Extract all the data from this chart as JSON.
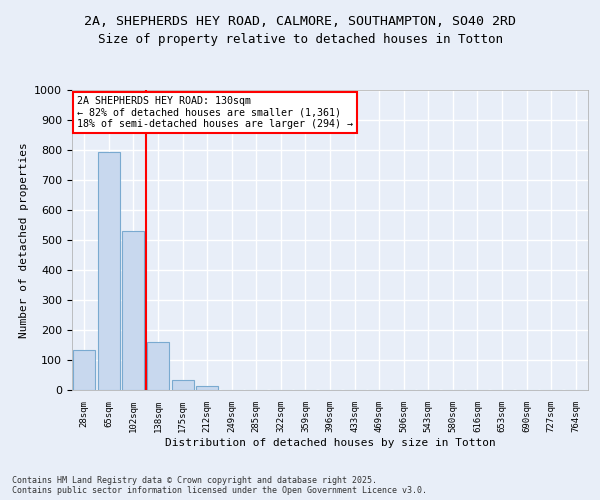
{
  "title": "2A, SHEPHERDS HEY ROAD, CALMORE, SOUTHAMPTON, SO40 2RD",
  "subtitle": "Size of property relative to detached houses in Totton",
  "xlabel": "Distribution of detached houses by size in Totton",
  "ylabel": "Number of detached properties",
  "categories": [
    "28sqm",
    "65sqm",
    "102sqm",
    "138sqm",
    "175sqm",
    "212sqm",
    "249sqm",
    "285sqm",
    "322sqm",
    "359sqm",
    "396sqm",
    "433sqm",
    "469sqm",
    "506sqm",
    "543sqm",
    "580sqm",
    "616sqm",
    "653sqm",
    "690sqm",
    "727sqm",
    "764sqm"
  ],
  "values": [
    135,
    795,
    530,
    160,
    35,
    12,
    0,
    0,
    0,
    0,
    0,
    0,
    0,
    0,
    0,
    0,
    0,
    0,
    0,
    0,
    0
  ],
  "bar_color": "#c8d8ee",
  "bar_edge_color": "#7aaad0",
  "vline_color": "red",
  "vline_pos": 2.5,
  "annotation_box_text": "2A SHEPHERDS HEY ROAD: 130sqm\n← 82% of detached houses are smaller (1,361)\n18% of semi-detached houses are larger (294) →",
  "ylim": [
    0,
    1000
  ],
  "yticks": [
    0,
    100,
    200,
    300,
    400,
    500,
    600,
    700,
    800,
    900,
    1000
  ],
  "bg_color": "#e8eef8",
  "plot_bg_color": "#e8eef8",
  "grid_color": "#ffffff",
  "footer_text": "Contains HM Land Registry data © Crown copyright and database right 2025.\nContains public sector information licensed under the Open Government Licence v3.0.",
  "title_fontsize": 9.5,
  "subtitle_fontsize": 9
}
